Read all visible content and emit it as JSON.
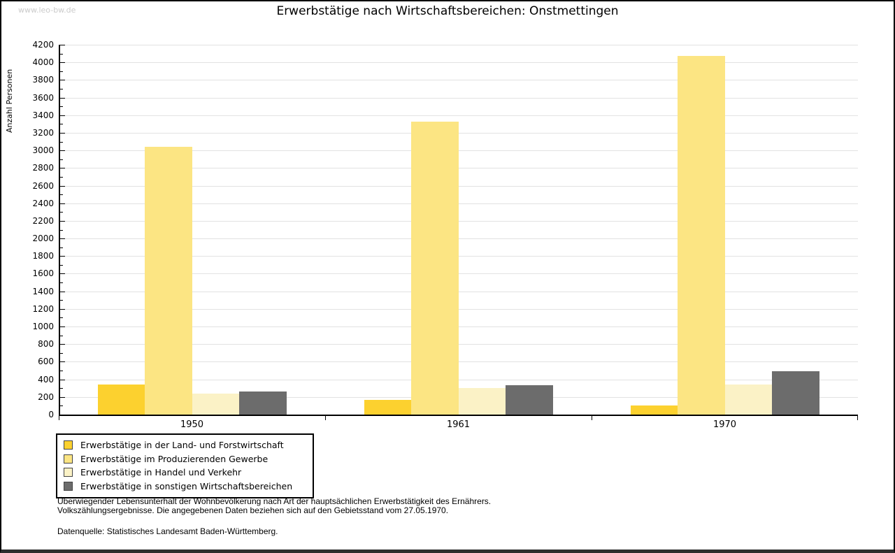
{
  "watermark": "www.leo-bw.de",
  "title": "Erwerbstätige nach Wirtschaftsbereichen: Onstmettingen",
  "chart_data": {
    "type": "bar",
    "title": "Erwerbstätige nach Wirtschaftsbereichen: Onstmettingen",
    "xlabel": "",
    "ylabel": "Anzahl Personen",
    "categories": [
      "1950",
      "1961",
      "1970"
    ],
    "series": [
      {
        "name": "Erwerbstätige in der Land- und Forstwirtschaft",
        "color": "#FCD12F",
        "values": [
          340,
          170,
          100
        ]
      },
      {
        "name": "Erwerbstätige im Produzierenden Gewerbe",
        "color": "#FCE583",
        "values": [
          3040,
          3330,
          4070
        ]
      },
      {
        "name": "Erwerbstätige in Handel und Verkehr",
        "color": "#FBF2C6",
        "values": [
          240,
          300,
          340
        ]
      },
      {
        "name": "Erwerbstätige in sonstigen Wirtschaftsbereichen",
        "color": "#6C6C6C",
        "values": [
          260,
          330,
          490
        ]
      }
    ],
    "ylim": [
      0,
      4200
    ],
    "y_major_step": 200,
    "y_minor_step": 100,
    "y_tick_labels": [
      "0",
      "200",
      "400",
      "600",
      "800",
      "1000",
      "1200",
      "1400",
      "1600",
      "1800",
      "2000",
      "2200",
      "2400",
      "2600",
      "2800",
      "3000",
      "3200",
      "3400",
      "3600",
      "3800",
      "4000",
      "4200"
    ],
    "grid": true,
    "legend_position": "bottom-left",
    "gridline_color": "#e2e2e2",
    "axis_color": "#000000"
  },
  "footnote": {
    "line1": "Überwiegender Lebensunterhalt der Wohnbevölkerung nach Art der hauptsächlichen Erwerbstätigkeit des Ernährers.",
    "line2": "Volkszählungsergebnisse. Die angegebenen Daten beziehen sich auf den Gebietsstand vom 27.05.1970.",
    "source": "Datenquelle: Statistisches Landesamt Baden-Württemberg."
  }
}
